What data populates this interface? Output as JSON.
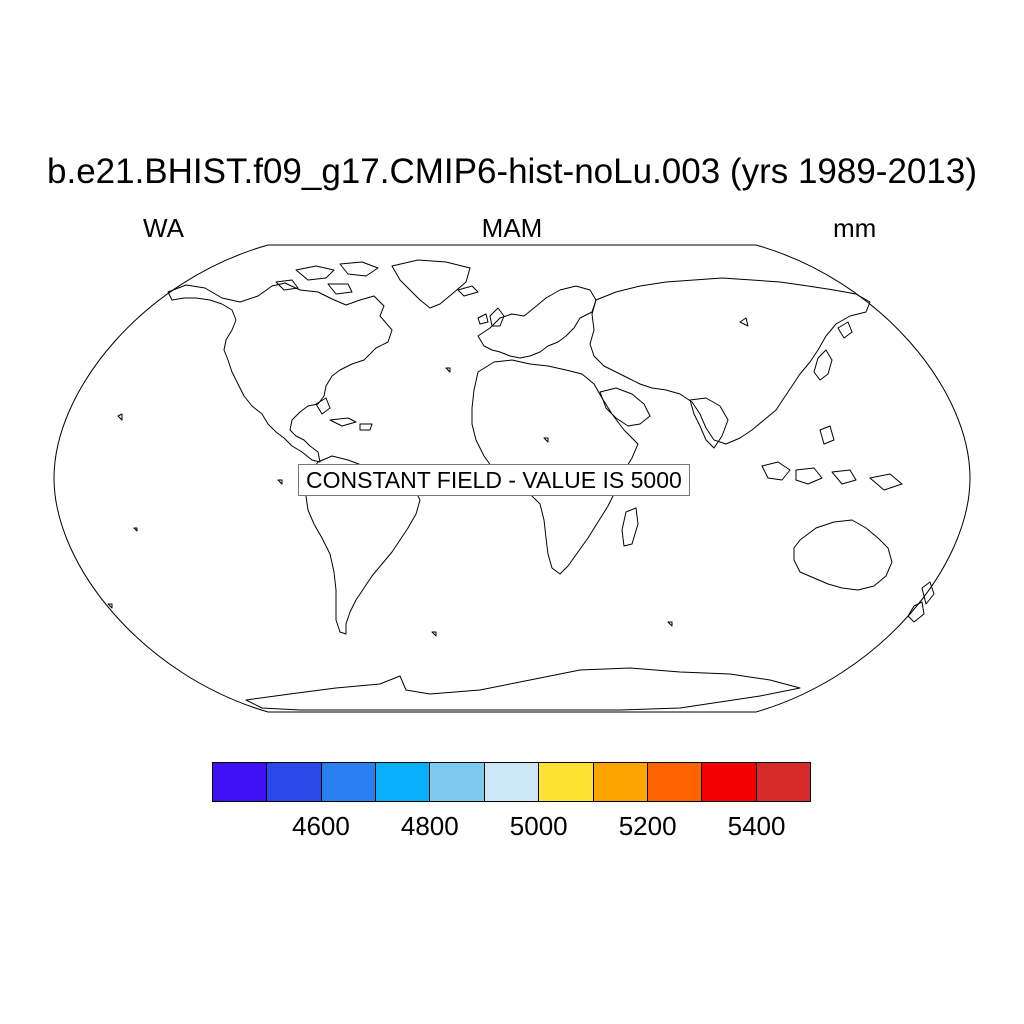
{
  "title": "b.e21.BHIST.f09_g17.CMIP6-hist-noLu.003 (yrs 1989-2013)",
  "subtitle_left": "WA",
  "subtitle_center": "MAM",
  "subtitle_right": "mm",
  "map": {
    "projection": "Robinson",
    "notice": "CONSTANT FIELD - VALUE IS 5000",
    "constant_value": 5000
  },
  "colorbar": {
    "colors": [
      "#4010f5",
      "#2b48e8",
      "#2b7ef0",
      "#08b0fc",
      "#7ecaee",
      "#cce8f8",
      "#fde234",
      "#fca400",
      "#fd6300",
      "#f30000",
      "#d72b2b"
    ],
    "labels": [
      "4600",
      "4800",
      "5000",
      "5200",
      "5400"
    ],
    "label_boundaries": [
      2,
      4,
      6,
      8,
      10
    ]
  }
}
